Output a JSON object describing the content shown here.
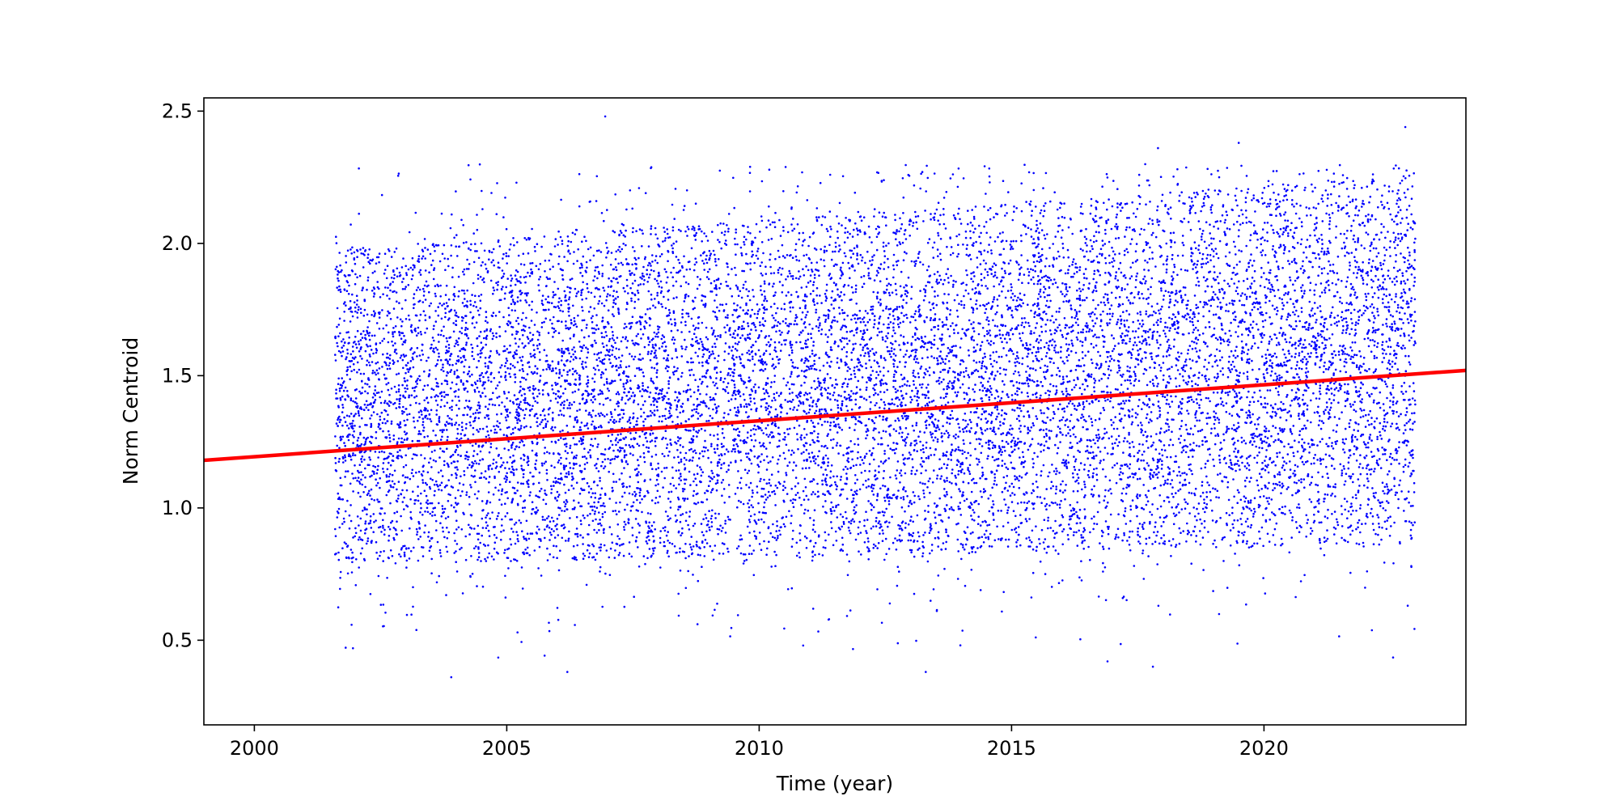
{
  "chart_data": {
    "type": "scatter",
    "title": "",
    "xlabel": "Time (year)",
    "ylabel": "Norm Centroid",
    "xlim": [
      1999.0,
      2024.0
    ],
    "ylim": [
      0.18,
      2.55
    ],
    "grid": false,
    "legend": "none",
    "x_ticks": [
      2000,
      2005,
      2010,
      2015,
      2020
    ],
    "y_ticks": [
      0.5,
      1.0,
      1.5,
      2.0,
      2.5
    ],
    "x_tick_labels": [
      "2000",
      "2005",
      "2010",
      "2015",
      "2020"
    ],
    "y_tick_labels": [
      "0.5",
      "1.0",
      "1.5",
      "2.0",
      "2.5"
    ],
    "scatter_series": {
      "color": "#0000ff",
      "x_range": [
        2001.6,
        2023.0
      ],
      "approx_point_count": 14000,
      "mean_trend": {
        "start": [
          2001.6,
          1.38
        ],
        "end": [
          2023.0,
          1.56
        ]
      },
      "approx_y_spread": 0.34,
      "outliers": [
        {
          "x": 2006.95,
          "y": 2.48
        },
        {
          "x": 2007.0,
          "y": 2.56
        },
        {
          "x": 2011.4,
          "y": 2.12
        },
        {
          "x": 2017.9,
          "y": 2.36
        },
        {
          "x": 2019.5,
          "y": 2.38
        },
        {
          "x": 2022.8,
          "y": 2.44
        },
        {
          "x": 2003.9,
          "y": 0.36
        },
        {
          "x": 2006.2,
          "y": 0.38
        },
        {
          "x": 2013.3,
          "y": 0.38
        },
        {
          "x": 2016.9,
          "y": 0.42
        },
        {
          "x": 2017.8,
          "y": 0.4
        }
      ]
    },
    "fit_line": {
      "color": "#ff0000",
      "points": [
        {
          "x": 1999.0,
          "y": 1.18
        },
        {
          "x": 2024.0,
          "y": 1.52
        }
      ]
    }
  }
}
